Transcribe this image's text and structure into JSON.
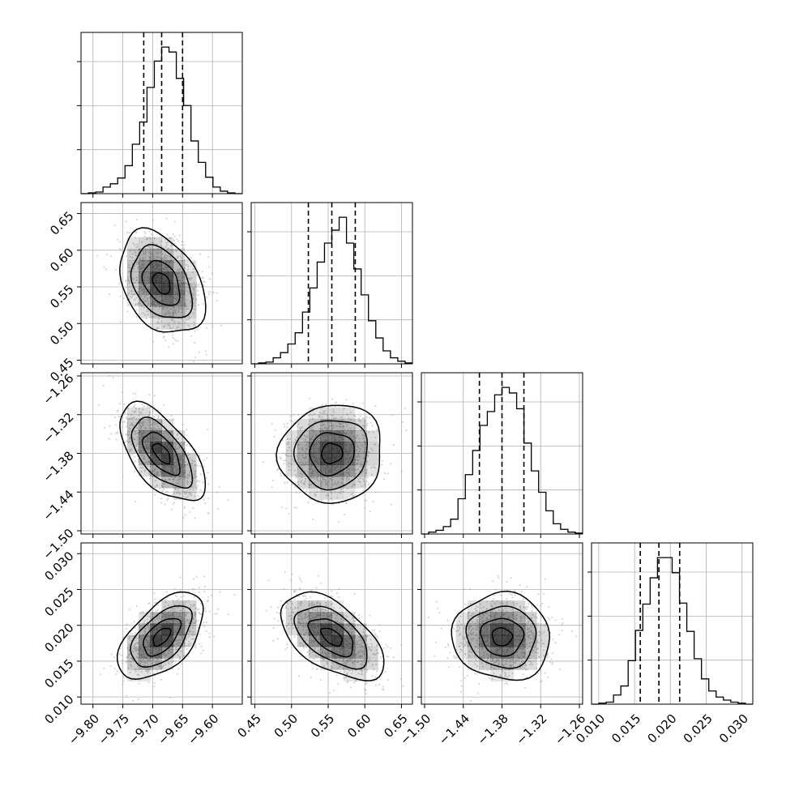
{
  "chart_data": {
    "type": "corner",
    "grid": true,
    "parameters": [
      {
        "range": [
          -9.82,
          -9.55
        ],
        "ticks": [
          -9.8,
          -9.75,
          -9.7,
          -9.65,
          -9.6
        ],
        "tick_labels": [
          "−9.80",
          "−9.75",
          "−9.70",
          "−9.65",
          "−9.60"
        ],
        "quantiles": [
          -9.715,
          -9.685,
          -9.65
        ],
        "histogram": [
          0,
          1,
          2,
          8,
          12,
          19,
          34,
          60,
          87,
          129,
          161,
          178,
          172,
          140,
          107,
          64,
          38,
          20,
          8,
          3,
          1,
          0
        ]
      },
      {
        "range": [
          0.445,
          0.665
        ],
        "ticks": [
          0.45,
          0.5,
          0.55,
          0.6,
          0.65
        ],
        "tick_labels": [
          "0.45",
          "0.50",
          "0.55",
          "0.60",
          "0.65"
        ],
        "quantiles": [
          0.523,
          0.555,
          0.587
        ],
        "histogram": [
          0,
          1,
          2,
          7,
          13,
          23,
          36,
          60,
          88,
          118,
          140,
          155,
          170,
          140,
          110,
          80,
          50,
          30,
          15,
          7,
          3,
          1
        ]
      },
      {
        "range": [
          -1.505,
          -1.255
        ],
        "ticks": [
          -1.5,
          -1.44,
          -1.38,
          -1.32,
          -1.26
        ],
        "tick_labels": [
          "−1.50",
          "−1.44",
          "−1.38",
          "−1.32",
          "−1.26"
        ],
        "quantiles": [
          -1.415,
          -1.38,
          -1.346
        ],
        "histogram": [
          0,
          2,
          4,
          8,
          16,
          38,
          64,
          90,
          117,
          132,
          150,
          158,
          152,
          135,
          98,
          68,
          45,
          25,
          11,
          5,
          2,
          1
        ]
      },
      {
        "range": [
          0.009,
          0.0315
        ],
        "ticks": [
          0.01,
          0.015,
          0.02,
          0.025,
          0.03
        ],
        "tick_labels": [
          "0.010",
          "0.015",
          "0.020",
          "0.025",
          "0.030"
        ],
        "quantiles": [
          0.0158,
          0.0184,
          0.0213
        ],
        "histogram": [
          0,
          1,
          2,
          9,
          18,
          43,
          73,
          99,
          125,
          145,
          145,
          130,
          100,
          72,
          45,
          25,
          13,
          7,
          4,
          2,
          1,
          0
        ]
      }
    ],
    "correlations": [
      [
        1,
        -0.35,
        -0.6,
        0.55
      ],
      [
        -0.35,
        1,
        0.05,
        -0.55
      ],
      [
        -0.6,
        0.05,
        1,
        -0.05
      ],
      [
        0.55,
        -0.55,
        -0.05,
        1
      ]
    ],
    "colors": {
      "line": "#000000",
      "grid": "#b0b0b0",
      "density": "#000000",
      "points": "#9a9a9a"
    }
  }
}
